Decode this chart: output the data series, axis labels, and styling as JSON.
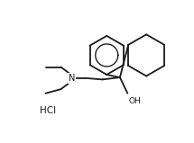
{
  "bg_color": "#ffffff",
  "line_color": "#1a1a1a",
  "line_width": 1.3,
  "figsize": [
    2.15,
    1.59
  ],
  "dpi": 100,
  "hcl_text": "HCl",
  "oh_text": "OH",
  "n_text": "N"
}
